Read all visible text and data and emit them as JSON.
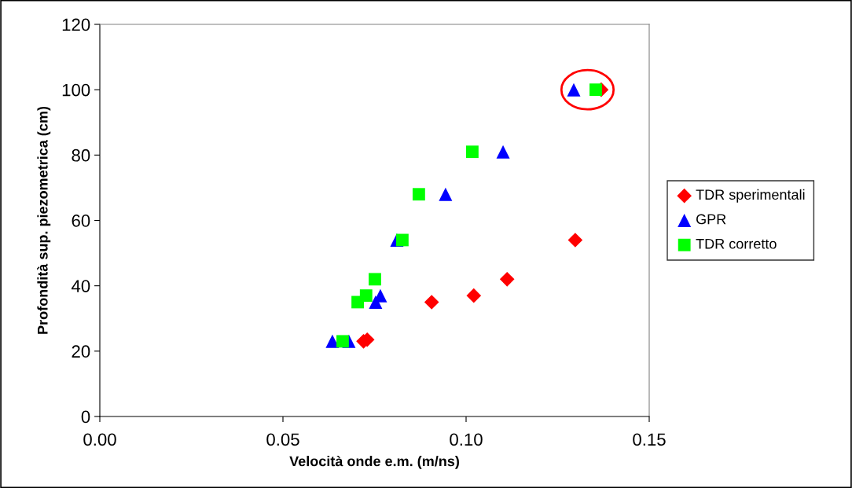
{
  "chart_data": {
    "type": "scatter",
    "xlabel": "Velocità onde e.m. (m/ns)",
    "ylabel": "Profondità sup. piezometrica (cm)",
    "xlim": [
      0,
      0.15
    ],
    "xticks": [
      {
        "value": 0,
        "label": "0.00"
      },
      {
        "value": 0.05,
        "label": "0.05"
      },
      {
        "value": 0.1,
        "label": "0.10"
      },
      {
        "value": 0.15,
        "label": "0.15"
      }
    ],
    "ylim": [
      0,
      120
    ],
    "yticks": [
      0,
      20,
      40,
      60,
      80,
      100,
      120
    ],
    "grid": false,
    "legend": "right",
    "series": [
      {
        "name": "TDR sperimentali",
        "color": "#ff0000",
        "marker": "diamond",
        "x": [
          0.072,
          0.073,
          0.0906,
          0.1021,
          0.1112,
          0.1298,
          0.1369
        ],
        "values": [
          23,
          23.5,
          35,
          37,
          42,
          54,
          100
        ]
      },
      {
        "name": "GPR",
        "color": "#0000ff",
        "marker": "triangle",
        "x": [
          0.0635,
          0.068,
          0.0753,
          0.0766,
          0.0811,
          0.0944,
          0.1101,
          0.1294
        ],
        "values": [
          23,
          23,
          35,
          37,
          54,
          68,
          81,
          100
        ]
      },
      {
        "name": "TDR corretto",
        "color": "#00ff00",
        "marker": "square",
        "x": [
          0.0663,
          0.0704,
          0.0727,
          0.0751,
          0.0826,
          0.0871,
          0.1017,
          0.1354
        ],
        "values": [
          23,
          35,
          37,
          42,
          54,
          68,
          81,
          100
        ]
      }
    ]
  }
}
